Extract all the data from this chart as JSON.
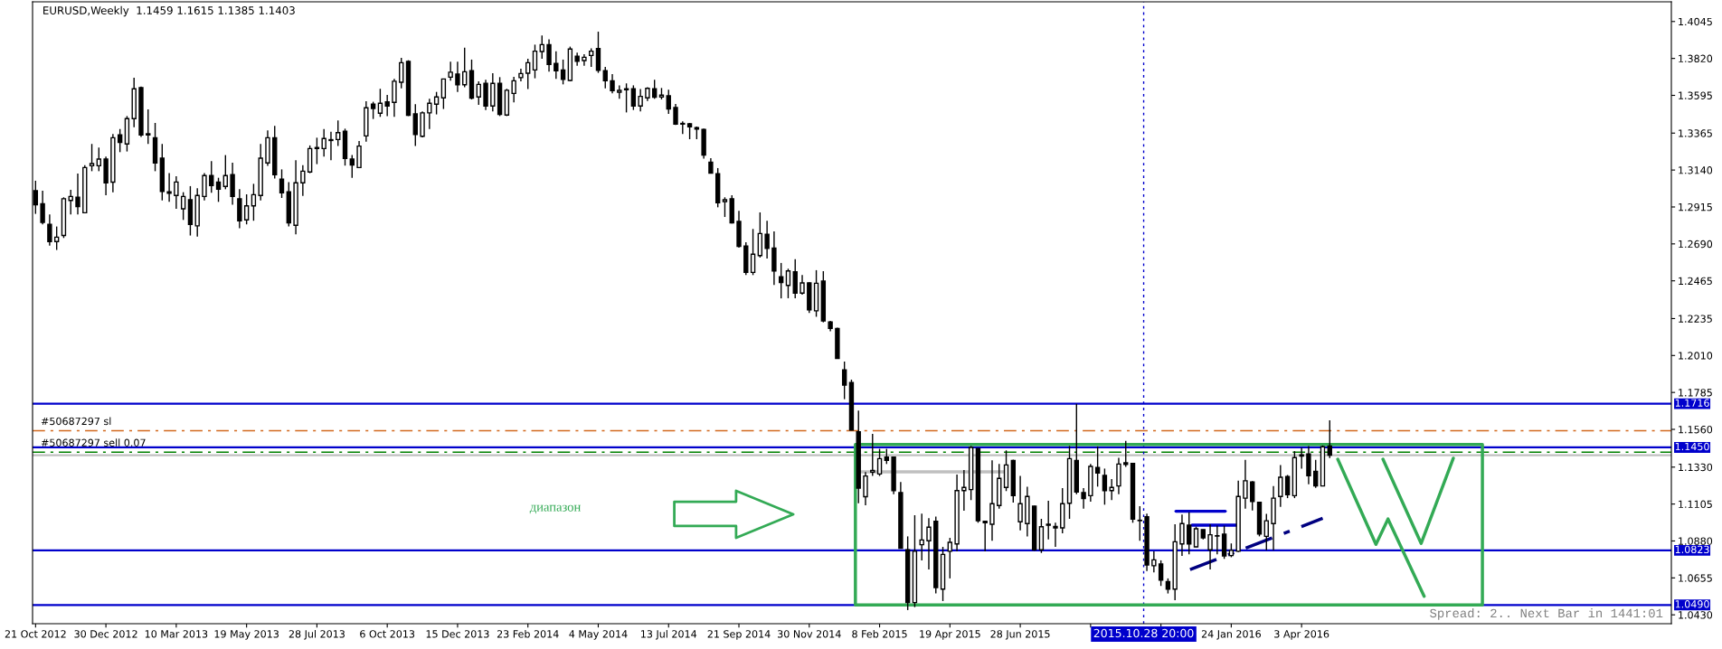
{
  "chart_data": {
    "type": "candlestick",
    "title": "EURUSD,Weekly  1.1459 1.1615 1.1385 1.1403",
    "x": [
      "2012-10-21",
      "2012-10-28",
      "2012-11-04",
      "2012-11-11",
      "2012-11-18",
      "2012-11-25",
      "2012-12-02",
      "2012-12-09",
      "2012-12-16",
      "2012-12-23",
      "2012-12-30",
      "2013-01-06",
      "2013-01-13",
      "2013-01-20",
      "2013-01-27",
      "2013-02-03",
      "2013-02-10",
      "2013-02-17",
      "2013-02-24",
      "2013-03-03",
      "2013-03-10",
      "2013-03-17",
      "2013-03-24",
      "2013-03-31",
      "2013-04-07",
      "2013-04-14",
      "2013-04-21",
      "2013-04-28",
      "2013-05-05",
      "2013-05-12",
      "2013-05-19",
      "2013-05-26",
      "2013-06-02",
      "2013-06-09",
      "2013-06-16",
      "2013-06-23",
      "2013-06-30",
      "2013-07-07",
      "2013-07-14",
      "2013-07-21",
      "2013-07-28",
      "2013-08-04",
      "2013-08-11",
      "2013-08-18",
      "2013-08-25",
      "2013-09-01",
      "2013-09-08",
      "2013-09-15",
      "2013-09-22",
      "2013-09-29",
      "2013-10-06",
      "2013-10-13",
      "2013-10-20",
      "2013-10-27",
      "2013-11-03",
      "2013-11-10",
      "2013-11-17",
      "2013-11-24",
      "2013-12-01",
      "2013-12-08",
      "2013-12-15",
      "2013-12-22",
      "2013-12-29",
      "2014-01-05",
      "2014-01-12",
      "2014-01-19",
      "2014-01-26",
      "2014-02-02",
      "2014-02-09",
      "2014-02-16",
      "2014-02-23",
      "2014-03-02",
      "2014-03-09",
      "2014-03-16",
      "2014-03-23",
      "2014-03-30",
      "2014-04-06",
      "2014-04-13",
      "2014-04-20",
      "2014-04-27",
      "2014-05-04",
      "2014-05-11",
      "2014-05-18",
      "2014-05-25",
      "2014-06-01",
      "2014-06-08",
      "2014-06-15",
      "2014-06-22",
      "2014-06-29",
      "2014-07-06",
      "2014-07-13",
      "2014-07-20",
      "2014-07-27",
      "2014-08-03",
      "2014-08-10",
      "2014-08-17",
      "2014-08-24",
      "2014-08-31",
      "2014-09-07",
      "2014-09-14",
      "2014-09-21",
      "2014-09-28",
      "2014-10-05",
      "2014-10-12",
      "2014-10-19",
      "2014-10-26",
      "2014-11-02",
      "2014-11-09",
      "2014-11-16",
      "2014-11-23",
      "2014-11-30",
      "2014-12-07",
      "2014-12-14",
      "2014-12-21",
      "2014-12-28",
      "2015-01-04",
      "2015-01-11",
      "2015-01-18",
      "2015-01-25",
      "2015-02-01",
      "2015-02-08",
      "2015-02-15",
      "2015-02-22",
      "2015-03-01",
      "2015-03-08",
      "2015-03-15",
      "2015-03-22",
      "2015-03-29",
      "2015-04-05",
      "2015-04-12",
      "2015-04-19",
      "2015-04-26",
      "2015-05-03",
      "2015-05-10",
      "2015-05-17",
      "2015-05-24",
      "2015-05-31",
      "2015-06-07",
      "2015-06-14",
      "2015-06-21",
      "2015-06-28",
      "2015-07-05",
      "2015-07-12",
      "2015-07-19",
      "2015-07-26",
      "2015-08-02",
      "2015-08-09",
      "2015-08-16",
      "2015-08-23",
      "2015-08-30",
      "2015-09-06",
      "2015-09-13",
      "2015-09-20",
      "2015-09-27",
      "2015-10-04",
      "2015-10-11",
      "2015-10-18",
      "2015-10-25",
      "2015-11-01",
      "2015-11-08",
      "2015-11-15",
      "2015-11-22",
      "2015-11-29",
      "2015-12-06",
      "2015-12-13",
      "2015-12-20",
      "2015-12-27",
      "2016-01-03",
      "2016-01-10",
      "2016-01-17",
      "2016-01-24",
      "2016-01-31",
      "2016-02-07",
      "2016-02-14",
      "2016-02-21",
      "2016-02-28",
      "2016-03-06",
      "2016-03-13",
      "2016-03-20",
      "2016-03-27",
      "2016-04-03",
      "2016-04-10",
      "2016-04-17",
      "2016-04-24",
      "2016-05-01"
    ],
    "ohlc": [
      [
        1.3014,
        1.3075,
        1.2873,
        1.2928
      ],
      [
        1.2935,
        1.3014,
        1.2809,
        1.2821
      ],
      [
        1.2809,
        1.2869,
        1.268,
        1.2704
      ],
      [
        1.2704,
        1.2796,
        1.2653,
        1.2731
      ],
      [
        1.2741,
        1.2974,
        1.2726,
        1.2965
      ],
      [
        1.2955,
        1.302,
        1.2869,
        1.2979
      ],
      [
        1.2974,
        1.3119,
        1.2869,
        1.2917
      ],
      [
        1.288,
        1.317,
        1.288,
        1.3155
      ],
      [
        1.3166,
        1.3299,
        1.3133,
        1.3179
      ],
      [
        1.3166,
        1.3277,
        1.3133,
        1.3207
      ],
      [
        1.3207,
        1.3222,
        1.2987,
        1.3062
      ],
      [
        1.3066,
        1.3359,
        1.3005,
        1.3337
      ],
      [
        1.3355,
        1.339,
        1.3249,
        1.3308
      ],
      [
        1.3299,
        1.3469,
        1.3253,
        1.3453
      ],
      [
        1.3453,
        1.3703,
        1.3401,
        1.3635
      ],
      [
        1.3642,
        1.3649,
        1.3341,
        1.3354
      ],
      [
        1.3361,
        1.351,
        1.3299,
        1.3354
      ],
      [
        1.3337,
        1.3427,
        1.3133,
        1.3183
      ],
      [
        1.3212,
        1.3299,
        1.2955,
        1.301
      ],
      [
        1.3008,
        1.3121,
        1.2946,
        1.2998
      ],
      [
        1.2985,
        1.3102,
        1.2904,
        1.3067
      ],
      [
        1.2904,
        1.3005,
        1.2836,
        1.2979
      ],
      [
        1.2959,
        1.3042,
        1.2741,
        1.2809
      ],
      [
        1.28,
        1.3029,
        1.2735,
        1.2985
      ],
      [
        1.2979,
        1.3121,
        1.2955,
        1.3106
      ],
      [
        1.3106,
        1.3194,
        1.3001,
        1.3045
      ],
      [
        1.3067,
        1.3093,
        1.2946,
        1.3023
      ],
      [
        1.304,
        1.3231,
        1.3023,
        1.3106
      ],
      [
        1.3112,
        1.3185,
        1.2928,
        1.2979
      ],
      [
        1.2965,
        1.3023,
        1.2785,
        1.2831
      ],
      [
        1.2836,
        1.2992,
        1.2809,
        1.2922
      ],
      [
        1.2922,
        1.3056,
        1.2831,
        1.299
      ],
      [
        1.2985,
        1.3299,
        1.2955,
        1.3212
      ],
      [
        1.3183,
        1.3381,
        1.3165,
        1.3337
      ],
      [
        1.3337,
        1.3409,
        1.3088,
        1.3112
      ],
      [
        1.3085,
        1.3144,
        1.297,
        1.3001
      ],
      [
        1.3007,
        1.3066,
        1.2796,
        1.2818
      ],
      [
        1.2803,
        1.32,
        1.2748,
        1.3062
      ],
      [
        1.3062,
        1.317,
        1.2983,
        1.3133
      ],
      [
        1.3128,
        1.329,
        1.3121,
        1.3271
      ],
      [
        1.3271,
        1.3337,
        1.3176,
        1.3277
      ],
      [
        1.3271,
        1.339,
        1.3222,
        1.3332
      ],
      [
        1.3325,
        1.3374,
        1.32,
        1.332
      ],
      [
        1.3326,
        1.3442,
        1.3286,
        1.3368
      ],
      [
        1.3376,
        1.3392,
        1.3167,
        1.3211
      ],
      [
        1.3207,
        1.3231,
        1.3093,
        1.317
      ],
      [
        1.3155,
        1.3317,
        1.3152,
        1.3286
      ],
      [
        1.3348,
        1.3559,
        1.3313,
        1.3519
      ],
      [
        1.3541,
        1.3556,
        1.3451,
        1.3515
      ],
      [
        1.3486,
        1.3635,
        1.3464,
        1.3547
      ],
      [
        1.3556,
        1.3598,
        1.3469,
        1.353
      ],
      [
        1.3552,
        1.3695,
        1.3464,
        1.3681
      ],
      [
        1.3675,
        1.3824,
        1.3638,
        1.3794
      ],
      [
        1.3802,
        1.3809,
        1.3469,
        1.3473
      ],
      [
        1.3482,
        1.3541,
        1.3286,
        1.3357
      ],
      [
        1.3346,
        1.3497,
        1.3339,
        1.3488
      ],
      [
        1.3488,
        1.3574,
        1.339,
        1.3547
      ],
      [
        1.3541,
        1.3616,
        1.3479,
        1.3585
      ],
      [
        1.358,
        1.3695,
        1.3512,
        1.3695
      ],
      [
        1.3706,
        1.38,
        1.3684,
        1.3736
      ],
      [
        1.3725,
        1.38,
        1.3616,
        1.366
      ],
      [
        1.366,
        1.3886,
        1.3644,
        1.3739
      ],
      [
        1.3745,
        1.3813,
        1.357,
        1.3578
      ],
      [
        1.3585,
        1.3681,
        1.3537,
        1.3662
      ],
      [
        1.3668,
        1.369,
        1.3506,
        1.353
      ],
      [
        1.353,
        1.373,
        1.3497,
        1.3668
      ],
      [
        1.3668,
        1.3706,
        1.3469,
        1.3479
      ],
      [
        1.3475,
        1.3635,
        1.3469,
        1.3626
      ],
      [
        1.3607,
        1.3708,
        1.3552,
        1.3684
      ],
      [
        1.3703,
        1.3758,
        1.3681,
        1.3728
      ],
      [
        1.373,
        1.3818,
        1.3633,
        1.3794
      ],
      [
        1.375,
        1.3904,
        1.3699,
        1.3864
      ],
      [
        1.3862,
        1.396,
        1.3818,
        1.3904
      ],
      [
        1.3904,
        1.3937,
        1.3739,
        1.3783
      ],
      [
        1.3789,
        1.3864,
        1.3695,
        1.3745
      ],
      [
        1.375,
        1.3813,
        1.3662,
        1.3692
      ],
      [
        1.3686,
        1.3892,
        1.3681,
        1.3877
      ],
      [
        1.3834,
        1.3855,
        1.3776,
        1.3803
      ],
      [
        1.3807,
        1.3846,
        1.3776,
        1.3827
      ],
      [
        1.3838,
        1.3882,
        1.3769,
        1.3864
      ],
      [
        1.388,
        1.3983,
        1.3732,
        1.3748
      ],
      [
        1.3745,
        1.3769,
        1.3638,
        1.3684
      ],
      [
        1.3684,
        1.3725,
        1.3607,
        1.3624
      ],
      [
        1.3614,
        1.3656,
        1.3574,
        1.3625
      ],
      [
        1.3635,
        1.3668,
        1.3491,
        1.3629
      ],
      [
        1.3635,
        1.3656,
        1.3506,
        1.353
      ],
      [
        1.353,
        1.3633,
        1.3497,
        1.3589
      ],
      [
        1.358,
        1.3644,
        1.3561,
        1.3638
      ],
      [
        1.3635,
        1.369,
        1.3574,
        1.3583
      ],
      [
        1.3585,
        1.364,
        1.357,
        1.3596
      ],
      [
        1.3592,
        1.3629,
        1.3482,
        1.3512
      ],
      [
        1.3521,
        1.3543,
        1.3414,
        1.342
      ],
      [
        1.3424,
        1.3436,
        1.3359,
        1.342
      ],
      [
        1.3422,
        1.3427,
        1.3328,
        1.3403
      ],
      [
        1.3398,
        1.3405,
        1.3328,
        1.339
      ],
      [
        1.3387,
        1.3392,
        1.3209,
        1.3231
      ],
      [
        1.3188,
        1.3212,
        1.3119,
        1.3121
      ],
      [
        1.3117,
        1.3152,
        1.2913,
        1.2941
      ],
      [
        1.2948,
        1.2974,
        1.2854,
        1.2959
      ],
      [
        1.2965,
        1.2987,
        1.2814,
        1.2818
      ],
      [
        1.2827,
        1.2891,
        1.2667,
        1.2675
      ],
      [
        1.2677,
        1.27,
        1.25,
        1.2516
      ],
      [
        1.2516,
        1.2781,
        1.25,
        1.2627
      ],
      [
        1.2619,
        1.2882,
        1.2607,
        1.2753
      ],
      [
        1.2748,
        1.2831,
        1.2601,
        1.2662
      ],
      [
        1.2665,
        1.2766,
        1.244,
        1.2525
      ],
      [
        1.249,
        1.2574,
        1.2358,
        1.2454
      ],
      [
        1.2437,
        1.2539,
        1.2359,
        1.2525
      ],
      [
        1.252,
        1.2597,
        1.2359,
        1.239
      ],
      [
        1.239,
        1.2501,
        1.238,
        1.2452
      ],
      [
        1.2452,
        1.2456,
        1.2269,
        1.2288
      ],
      [
        1.2282,
        1.253,
        1.2246,
        1.245
      ],
      [
        1.2463,
        1.2524,
        1.2212,
        1.2221
      ],
      [
        1.2215,
        1.2221,
        1.2157,
        1.2175
      ],
      [
        1.2175,
        1.218,
        1.199,
        1.1992
      ],
      [
        1.1922,
        1.1973,
        1.1744,
        1.183
      ],
      [
        1.1845,
        1.1863,
        1.1554,
        1.1556
      ],
      [
        1.1545,
        1.1674,
        1.111,
        1.1202
      ],
      [
        1.115,
        1.13,
        1.1097,
        1.1276
      ],
      [
        1.13,
        1.1533,
        1.1276,
        1.131
      ],
      [
        1.1288,
        1.1441,
        1.1276,
        1.1382
      ],
      [
        1.1391,
        1.1441,
        1.1349,
        1.1371
      ],
      [
        1.1391,
        1.1395,
        1.1165,
        1.1187
      ],
      [
        1.1175,
        1.1239,
        1.0833,
        1.0835
      ],
      [
        1.0826,
        1.0908,
        1.0459,
        1.0505
      ],
      [
        1.0505,
        1.1037,
        1.0477,
        1.0817
      ],
      [
        1.0857,
        1.1046,
        1.0762,
        1.0886
      ],
      [
        1.0881,
        1.1019,
        1.0707,
        1.0964
      ],
      [
        1.1,
        1.1028,
        1.056,
        1.0596
      ],
      [
        1.0587,
        1.0844,
        1.0514,
        1.0798
      ],
      [
        1.0817,
        1.0899,
        1.0652,
        1.0872
      ],
      [
        1.0862,
        1.1285,
        1.0817,
        1.1187
      ],
      [
        1.1187,
        1.1312,
        1.1064,
        1.1206
      ],
      [
        1.1193,
        1.1459,
        1.1129,
        1.145
      ],
      [
        1.1444,
        1.1446,
        1.0991,
        1.1004
      ],
      [
        1.1,
        1.1002,
        1.0817,
        1.0991
      ],
      [
        1.0982,
        1.1371,
        1.0881,
        1.1107
      ],
      [
        1.1096,
        1.1349,
        1.1077,
        1.1261
      ],
      [
        1.1206,
        1.1432,
        1.1184,
        1.1343
      ],
      [
        1.1371,
        1.1375,
        1.1114,
        1.1156
      ],
      [
        1.0997,
        1.1276,
        1.0945,
        1.1107
      ],
      [
        1.0986,
        1.1211,
        1.0908,
        1.1151
      ],
      [
        1.1092,
        1.1095,
        1.082,
        1.0826
      ],
      [
        1.0826,
        1.1015,
        1.0807,
        1.0967
      ],
      [
        1.0982,
        1.1125,
        1.089,
        1.0976
      ],
      [
        1.0969,
        1.0991,
        1.0844,
        1.096
      ],
      [
        1.096,
        1.1202,
        1.0927,
        1.1107
      ],
      [
        1.111,
        1.1459,
        1.1015,
        1.1382
      ],
      [
        1.1371,
        1.1716,
        1.1165,
        1.1178
      ],
      [
        1.1175,
        1.1202,
        1.1077,
        1.1138
      ],
      [
        1.1156,
        1.1349,
        1.112,
        1.1334
      ],
      [
        1.1327,
        1.1456,
        1.1211,
        1.1294
      ],
      [
        1.1279,
        1.1321,
        1.1101,
        1.1187
      ],
      [
        1.1187,
        1.1257,
        1.1129,
        1.1206
      ],
      [
        1.1215,
        1.1386,
        1.1165,
        1.1349
      ],
      [
        1.1356,
        1.149,
        1.1332,
        1.1347
      ],
      [
        1.1353,
        1.1355,
        1.0991,
        1.1013
      ],
      [
        1.1006,
        1.1092,
        1.0881,
        1.1004
      ],
      [
        1.1028,
        1.1046,
        1.0697,
        1.0734
      ],
      [
        1.0729,
        1.0817,
        1.0688,
        1.0765
      ],
      [
        1.074,
        1.0762,
        1.0606,
        1.0642
      ],
      [
        1.0633,
        1.0652,
        1.056,
        1.0587
      ],
      [
        1.0587,
        1.0982,
        1.0519,
        1.0875
      ],
      [
        1.0862,
        1.1041,
        1.0789,
        1.0986
      ],
      [
        1.0976,
        1.1055,
        1.0798,
        1.0862
      ],
      [
        1.0844,
        1.0967,
        1.0842,
        1.0954
      ],
      [
        1.0949,
        1.095,
        1.089,
        1.0899
      ],
      [
        1.0826,
        1.0982,
        1.0707,
        1.0918
      ],
      [
        1.0912,
        1.0973,
        1.0798,
        1.091
      ],
      [
        1.0921,
        1.0973,
        1.0771,
        1.0789
      ],
      [
        1.0791,
        1.0865,
        1.0781,
        1.0823
      ],
      [
        1.0817,
        1.1247,
        1.0812,
        1.1151
      ],
      [
        1.1141,
        1.1374,
        1.1077,
        1.1247
      ],
      [
        1.124,
        1.1245,
        1.1066,
        1.112
      ],
      [
        1.1115,
        1.1118,
        1.0908,
        1.0922
      ],
      [
        1.0908,
        1.1045,
        1.0823,
        1.1003
      ],
      [
        1.0986,
        1.1215,
        1.0823,
        1.1141
      ],
      [
        1.1151,
        1.1342,
        1.1088,
        1.1268
      ],
      [
        1.1272,
        1.1282,
        1.1141,
        1.1162
      ],
      [
        1.1156,
        1.1427,
        1.1141,
        1.1388
      ],
      [
        1.1405,
        1.1448,
        1.1321,
        1.1397
      ],
      [
        1.141,
        1.1458,
        1.1225,
        1.1278
      ],
      [
        1.1304,
        1.1374,
        1.1204,
        1.1215
      ],
      [
        1.1215,
        1.1462,
        1.1213,
        1.1454
      ],
      [
        1.1459,
        1.1615,
        1.1385,
        1.1403
      ]
    ],
    "series": [
      {
        "type": "line",
        "color": "#33aa55",
        "line_style": "solid",
        "x": [
          "2016-05-09",
          "2016-06-16",
          "2016-06-28",
          "2016-08-03",
          "2016-07-13",
          "2016-06-23",
          "2016-07-31",
          "2016-09-01"
        ],
        "values": [
          1.1378,
          1.0859,
          1.1014,
          1.0543,
          null,
          1.1378,
          1.0865,
          1.1384
        ]
      },
      {
        "type": "line",
        "color": "#c0c0c0",
        "line_style": "solid",
        "x": [
          "2015-01-20",
          "2015-06-12"
        ],
        "values": [
          1.1301,
          1.1301
        ]
      },
      {
        "type": "line",
        "color": "#0000cc",
        "line_style": "solid",
        "x": [
          "2015-11-30",
          "2016-01-18"
        ],
        "values": [
          1.1061,
          1.1061
        ]
      },
      {
        "type": "line",
        "color": "#0000cc",
        "line_style": "solid",
        "x": [
          "2015-12-16",
          "2016-01-30"
        ],
        "values": [
          1.0976,
          1.0976
        ]
      },
      {
        "type": "line",
        "color": "#000080",
        "line_style": "dashed",
        "x": [
          "2015-12-14",
          "2016-04-24"
        ],
        "values": [
          1.0706,
          1.1018
        ]
      }
    ],
    "xlim": [
      "2012-10-18",
      "2017-04-06"
    ],
    "xticks": [
      {
        "value": "2012-10-21",
        "label": "21 Oct 2012"
      },
      {
        "value": "2012-12-30",
        "label": "30 Dec 2012"
      },
      {
        "value": "2013-03-10",
        "label": "10 Mar 2013"
      },
      {
        "value": "2013-05-19",
        "label": "19 May 2013"
      },
      {
        "value": "2013-07-28",
        "label": "28 Jul 2013"
      },
      {
        "value": "2013-10-06",
        "label": "6 Oct 2013"
      },
      {
        "value": "2013-12-15",
        "label": "15 Dec 2013"
      },
      {
        "value": "2014-02-23",
        "label": "23 Feb 2014"
      },
      {
        "value": "2014-05-04",
        "label": "4 May 2014"
      },
      {
        "value": "2014-07-13",
        "label": "13 Jul 2014"
      },
      {
        "value": "2014-09-21",
        "label": "21 Sep 2014"
      },
      {
        "value": "2014-11-30",
        "label": "30 Nov 2014"
      },
      {
        "value": "2015-02-08",
        "label": "8 Feb 2015"
      },
      {
        "value": "2015-04-19",
        "label": "19 Apr 2015"
      },
      {
        "value": "2015-06-28",
        "label": "28 Jun 2015"
      },
      {
        "value": "2015-09-06",
        "label": null
      },
      {
        "value": "2015-11-15",
        "label": null
      },
      {
        "value": "2016-01-24",
        "label": "24 Jan 2016"
      },
      {
        "value": "2016-04-03",
        "label": "3 Apr 2016"
      }
    ],
    "ylim": [
      1.0376,
      1.4165
    ],
    "yticks": [
      {
        "value": 1.4045,
        "label": "1.4045"
      },
      {
        "value": 1.382,
        "label": "1.3820"
      },
      {
        "value": 1.3595,
        "label": "1.3595"
      },
      {
        "value": 1.3365,
        "label": "1.3365"
      },
      {
        "value": 1.314,
        "label": "1.3140"
      },
      {
        "value": 1.2915,
        "label": "1.2915"
      },
      {
        "value": 1.269,
        "label": "1.2690"
      },
      {
        "value": 1.2465,
        "label": "1.2465"
      },
      {
        "value": 1.2235,
        "label": "1.2235"
      },
      {
        "value": 1.201,
        "label": "1.2010"
      },
      {
        "value": 1.1785,
        "label": "1.1785"
      },
      {
        "value": 1.156,
        "label": "1.1560"
      },
      {
        "value": 1.133,
        "label": "1.1330"
      },
      {
        "value": 1.1105,
        "label": "1.1105"
      },
      {
        "value": 1.088,
        "label": "1.0880"
      },
      {
        "value": 1.0655,
        "label": "1.0655"
      },
      {
        "value": 1.043,
        "label": "1.0430"
      }
    ],
    "ref_lines": [
      {
        "axis": "y",
        "value": 1.1403,
        "color": "#c0c0c0",
        "line_style": "solid"
      },
      {
        "axis": "y",
        "value": 1.1716,
        "label": "1.1716",
        "color": "#0000cc",
        "line_style": "solid"
      },
      {
        "axis": "y",
        "value": 1.145,
        "label": "1.1450",
        "color": "#0000cc",
        "line_style": "solid"
      },
      {
        "axis": "y",
        "value": 1.0823,
        "label": "1.0823",
        "color": "#0000cc",
        "line_style": "solid"
      },
      {
        "axis": "y",
        "value": 1.049,
        "label": "1.0490",
        "color": "#0000cc",
        "line_style": "solid"
      },
      {
        "axis": "y",
        "value": 1.1552,
        "label": "#50687297 sl",
        "color": "#d2691e",
        "line_style": "dashed"
      },
      {
        "axis": "y",
        "value": 1.1421,
        "label": "#50687297 sell 0.07",
        "color": "#008000",
        "line_style": "dashed"
      },
      {
        "axis": "x",
        "value": "2015-10-28T20:00",
        "label": "2015.10.28 20:00",
        "color": "#0000cc",
        "line_style": "dotted"
      }
    ],
    "annotations": [
      "диапазон",
      "Spread: 2.. Next Bar in 1441:01"
    ],
    "grid": false
  }
}
